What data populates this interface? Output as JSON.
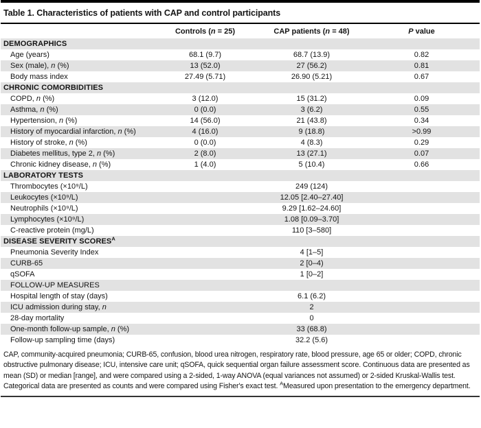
{
  "colors": {
    "stripe": "#e2e2e2",
    "rule": "#000000",
    "bottom_rule": "#333333"
  },
  "table": {
    "title": "Table 1. Characteristics of patients with CAP and control participants",
    "columns": {
      "label": "",
      "controls": "Controls (n = 25)",
      "cap": "CAP patients (n = 48)",
      "pvalue": "P value"
    },
    "rows": [
      {
        "type": "section",
        "label": "DEMOGRAPHICS",
        "controls": "",
        "cap": "",
        "p": ""
      },
      {
        "type": "data",
        "label": "Age (years)",
        "controls": "68.1 (9.7)",
        "cap": "68.7 (13.9)",
        "p": "0.82"
      },
      {
        "type": "data",
        "label": "Sex (male), n (%)",
        "controls": "13 (52.0)",
        "cap": "27 (56.2)",
        "p": "0.81"
      },
      {
        "type": "data",
        "label": "Body mass index",
        "controls": "27.49 (5.71)",
        "cap": "26.90 (5.21)",
        "p": "0.67"
      },
      {
        "type": "section",
        "label": "CHRONIC COMORBIDITIES",
        "controls": "",
        "cap": "",
        "p": ""
      },
      {
        "type": "data",
        "label": "COPD, n (%)",
        "controls": "3 (12.0)",
        "cap": "15 (31.2)",
        "p": "0.09"
      },
      {
        "type": "data",
        "label": "Asthma, n (%)",
        "controls": "0 (0.0)",
        "cap": "3 (6.2)",
        "p": "0.55"
      },
      {
        "type": "data",
        "label": "Hypertension, n (%)",
        "controls": "14 (56.0)",
        "cap": "21 (43.8)",
        "p": "0.34"
      },
      {
        "type": "data",
        "label": "History of myocardial infarction, n (%)",
        "controls": "4 (16.0)",
        "cap": "9 (18.8)",
        "p": ">0.99"
      },
      {
        "type": "data",
        "label": "History of stroke, n (%)",
        "controls": "0 (0.0)",
        "cap": "4 (8.3)",
        "p": "0.29"
      },
      {
        "type": "data",
        "label": "Diabetes mellitus, type 2, n (%)",
        "controls": "2 (8.0)",
        "cap": "13 (27.1)",
        "p": "0.07"
      },
      {
        "type": "data",
        "label": "Chronic kidney disease, n (%)",
        "controls": "1 (4.0)",
        "cap": "5 (10.4)",
        "p": "0.66"
      },
      {
        "type": "section",
        "label": "LABORATORY TESTS",
        "controls": "",
        "cap": "",
        "p": ""
      },
      {
        "type": "data",
        "label": "Thrombocytes (×10⁹/L)",
        "controls": "",
        "cap": "249 (124)",
        "p": ""
      },
      {
        "type": "data",
        "label": "Leukocytes (×10⁹/L)",
        "controls": "",
        "cap": "12.05 [2.40–27.40]",
        "p": ""
      },
      {
        "type": "data",
        "label": "Neutrophils (×10⁹/L)",
        "controls": "",
        "cap": "9.29 [1.62–24.60]",
        "p": ""
      },
      {
        "type": "data",
        "label": "Lymphocytes (×10⁹/L)",
        "controls": "",
        "cap": "1.08 [0.09–3.70]",
        "p": ""
      },
      {
        "type": "data",
        "label": "C-reactive protein (mg/L)",
        "controls": "",
        "cap": "110 [3–580]",
        "p": ""
      },
      {
        "type": "section",
        "label": "DISEASE SEVERITY SCORES^A",
        "controls": "",
        "cap": "",
        "p": ""
      },
      {
        "type": "data",
        "label": "Pneumonia Severity Index",
        "controls": "",
        "cap": "4 [1–5]",
        "p": ""
      },
      {
        "type": "data",
        "label": "CURB-65",
        "controls": "",
        "cap": "2 [0–4)",
        "p": ""
      },
      {
        "type": "data",
        "label": "qSOFA",
        "controls": "",
        "cap": "1 [0–2]",
        "p": ""
      },
      {
        "type": "subheader",
        "label": "FOLLOW-UP MEASURES",
        "controls": "",
        "cap": "",
        "p": ""
      },
      {
        "type": "data",
        "label": "Hospital length of stay (days)",
        "controls": "",
        "cap": "6.1 (6.2)",
        "p": ""
      },
      {
        "type": "data",
        "label": "ICU admission during stay, n",
        "controls": "",
        "cap": "2",
        "p": ""
      },
      {
        "type": "data",
        "label": "28-day mortality",
        "controls": "",
        "cap": "0",
        "p": ""
      },
      {
        "type": "data",
        "label": "One-month follow-up sample, n (%)",
        "controls": "",
        "cap": "33 (68.8)",
        "p": ""
      },
      {
        "type": "data",
        "label": "Follow-up sampling time (days)",
        "controls": "",
        "cap": "32.2 (5.6)",
        "p": ""
      }
    ],
    "footnote": "CAP, community-acquired pneumonia; CURB-65, confusion, blood urea nitrogen, respiratory rate, blood pressure, age 65 or older; COPD, chronic obstructive pulmonary disease; ICU, intensive care unit; qSOFA, quick sequential organ failure assessment score. Continuous data are presented as mean (SD) or median [range], and were compared using a 2-sided, 1-way ANOVA (equal variances not assumed) or 2-sided Kruskal-Wallis test. Categorical data are presented as counts and were compared using Fisher's exact test. ^AMeasured upon presentation to the emergency department."
  }
}
